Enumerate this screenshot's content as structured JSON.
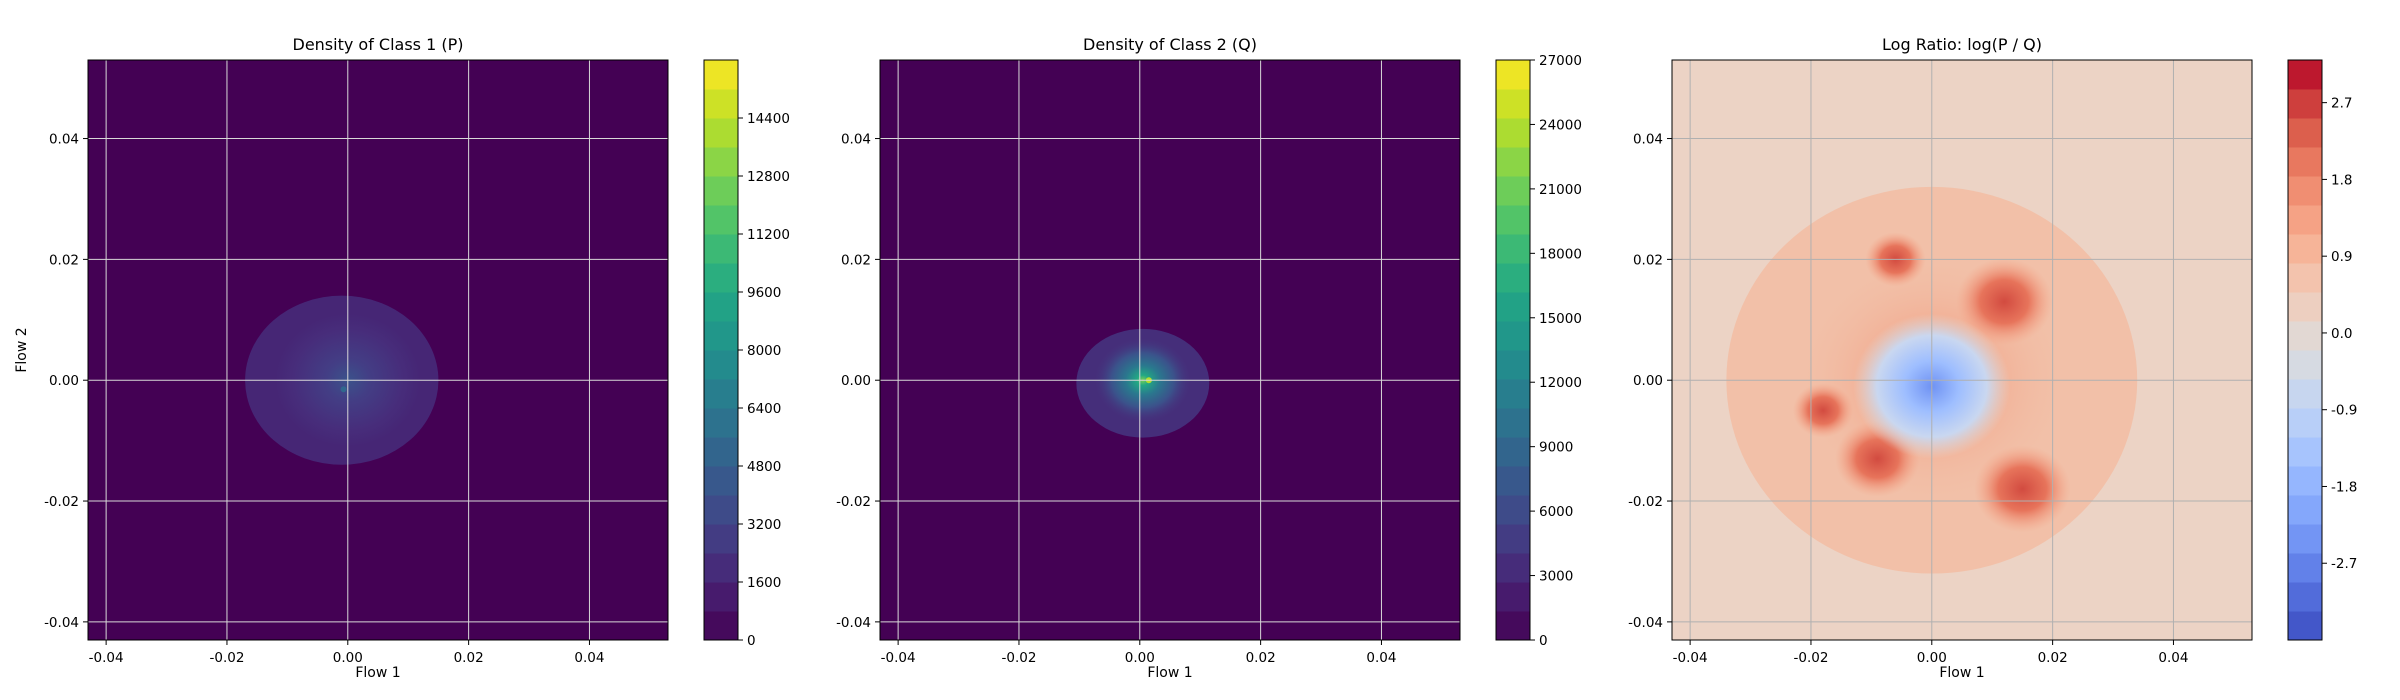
{
  "chart_data": [
    {
      "type": "heatmap",
      "title": "Density of Class 1 (P)",
      "xlabel": "Flow 1",
      "ylabel": "Flow 2",
      "xlim": [
        -0.043,
        0.053
      ],
      "ylim": [
        -0.043,
        0.053
      ],
      "xticks": [
        "-0.04",
        "-0.02",
        "0.00",
        "0.02",
        "0.04"
      ],
      "yticks": [
        "-0.04",
        "-0.02",
        "0.00",
        "0.02",
        "0.04"
      ],
      "grid": true,
      "colormap": "viridis",
      "colorbar": {
        "min": 0,
        "max": 16000,
        "ticks": [
          "0",
          "1600",
          "3200",
          "4800",
          "6400",
          "8000",
          "9600",
          "11200",
          "12800",
          "14400"
        ]
      },
      "background_color": "#440154",
      "peak_density_approx": 6000
    },
    {
      "type": "heatmap",
      "title": "Density of Class 2 (Q)",
      "xlabel": "Flow 1",
      "ylabel": "",
      "xlim": [
        -0.043,
        0.053
      ],
      "ylim": [
        -0.043,
        0.053
      ],
      "xticks": [
        "-0.04",
        "-0.02",
        "0.00",
        "0.02",
        "0.04"
      ],
      "yticks": [
        "-0.04",
        "-0.02",
        "0.00",
        "0.02",
        "0.04"
      ],
      "grid": true,
      "colormap": "viridis",
      "colorbar": {
        "min": 0,
        "max": 27000,
        "ticks": [
          "0",
          "3000",
          "6000",
          "9000",
          "12000",
          "15000",
          "18000",
          "21000",
          "24000",
          "27000"
        ]
      },
      "background_color": "#440154",
      "peak_density_approx": 22000
    },
    {
      "type": "heatmap",
      "title": "Log Ratio: log(P / Q)",
      "xlabel": "Flow 1",
      "ylabel": "",
      "xlim": [
        -0.043,
        0.053
      ],
      "ylim": [
        -0.043,
        0.053
      ],
      "xticks": [
        "-0.04",
        "-0.02",
        "0.00",
        "0.02",
        "0.04"
      ],
      "yticks": [
        "-0.04",
        "-0.02",
        "0.00",
        "0.02",
        "0.04"
      ],
      "grid": true,
      "colormap": "coolwarm",
      "colorbar": {
        "min": -3.6,
        "max": 3.2,
        "ticks": [
          "-2.7",
          "-1.8",
          "-0.9",
          "0.0",
          "0.9",
          "1.8",
          "2.7"
        ]
      },
      "background_value": 0.3
    }
  ]
}
